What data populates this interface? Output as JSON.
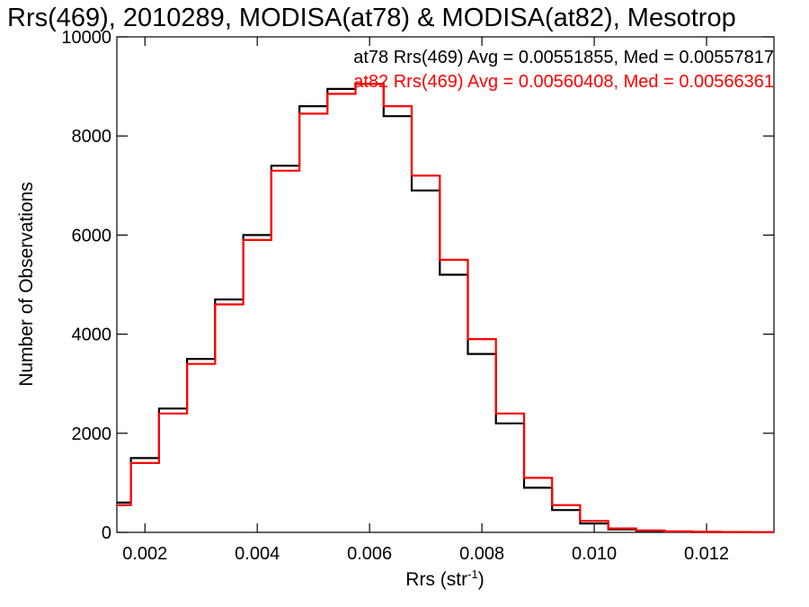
{
  "chart_data": {
    "type": "line",
    "title": "Rrs(469), 2010289, MODISA(at78) & MODISA(at82), Mesotrop",
    "xlabel": "Rrs (str",
    "xlabel_sup": "-1",
    "xlabel_end": ")",
    "ylabel": "Number of Observations",
    "xlim": [
      0.0015,
      0.0132
    ],
    "ylim": [
      0,
      10000
    ],
    "xticks": [
      0.002,
      0.004,
      0.006,
      0.008,
      0.01,
      0.012
    ],
    "xtick_labels": [
      "0.002",
      "0.004",
      "0.006",
      "0.008",
      "0.010",
      "0.012"
    ],
    "yticks": [
      0,
      2000,
      4000,
      6000,
      8000,
      10000
    ],
    "ytick_labels": [
      "0",
      "2000",
      "4000",
      "6000",
      "8000",
      "10000"
    ],
    "grid": false,
    "legend_position": "top-right",
    "series": [
      {
        "name": "at78 Rrs(469) Avg = 0.00551855, Med = 0.00557817",
        "color": "#000000",
        "x": [
          0.0015,
          0.002,
          0.0025,
          0.003,
          0.0035,
          0.004,
          0.0045,
          0.005,
          0.0055,
          0.006,
          0.0065,
          0.007,
          0.0075,
          0.008,
          0.0085,
          0.009,
          0.0095,
          0.01,
          0.0105,
          0.011,
          0.0115,
          0.012,
          0.0125,
          0.0132
        ],
        "y": [
          600,
          1500,
          2500,
          3500,
          4700,
          6000,
          7400,
          8600,
          8950,
          9050,
          8400,
          6900,
          5200,
          3600,
          2200,
          900,
          450,
          180,
          60,
          30,
          15,
          8,
          5,
          2
        ]
      },
      {
        "name": "at82 Rrs(469) Avg = 0.00560408, Med = 0.00566361",
        "color": "#ff0000",
        "x": [
          0.0015,
          0.002,
          0.0025,
          0.003,
          0.0035,
          0.004,
          0.0045,
          0.005,
          0.0055,
          0.006,
          0.0065,
          0.007,
          0.0075,
          0.008,
          0.0085,
          0.009,
          0.0095,
          0.01,
          0.0105,
          0.011,
          0.0115,
          0.012,
          0.0125,
          0.0132
        ],
        "y": [
          550,
          1400,
          2400,
          3400,
          4600,
          5900,
          7300,
          8450,
          8850,
          9050,
          8600,
          7200,
          5500,
          3900,
          2400,
          1100,
          550,
          230,
          80,
          40,
          20,
          10,
          6,
          3
        ]
      }
    ]
  }
}
